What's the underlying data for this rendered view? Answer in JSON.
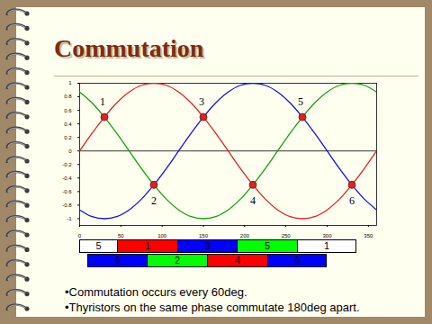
{
  "chart_data": {
    "type": "line",
    "title": "Commutation",
    "x": [
      0,
      15,
      30,
      45,
      60,
      75,
      90,
      105,
      120,
      135,
      150,
      165,
      180,
      195,
      210,
      225,
      240,
      255,
      270,
      285,
      300,
      315,
      330,
      345,
      360
    ],
    "series": [
      {
        "color": "#e02020",
        "values": [
          0,
          0.26,
          0.5,
          0.71,
          0.87,
          0.97,
          1,
          0.97,
          0.87,
          0.71,
          0.5,
          0.26,
          0,
          -0.26,
          -0.5,
          -0.71,
          -0.87,
          -0.97,
          -1,
          -0.97,
          -0.87,
          -0.71,
          -0.5,
          -0.26,
          0
        ]
      },
      {
        "color": "#1010e0",
        "values": [
          -0.87,
          -0.97,
          -1,
          -0.97,
          -0.87,
          -0.71,
          -0.5,
          -0.26,
          0,
          0.26,
          0.5,
          0.71,
          0.87,
          0.97,
          1,
          0.97,
          0.87,
          0.71,
          0.5,
          0.26,
          0,
          -0.26,
          -0.5,
          -0.71,
          -0.87
        ]
      },
      {
        "color": "#10a010",
        "values": [
          0.87,
          0.71,
          0.5,
          0.26,
          0,
          -0.26,
          -0.5,
          -0.71,
          -0.87,
          -0.97,
          -1,
          -0.97,
          -0.87,
          -0.71,
          -0.5,
          -0.26,
          0,
          0.26,
          0.5,
          0.71,
          0.87,
          0.97,
          1,
          0.97,
          0.87
        ]
      }
    ],
    "annotations": [
      {
        "x": 30,
        "y": 0.5,
        "label": "1",
        "color": "#dd2222",
        "marker": "circle"
      },
      {
        "x": 90,
        "y": -0.5,
        "label": "2",
        "color": "#dd2222",
        "marker": "circle"
      },
      {
        "x": 150,
        "y": 0.5,
        "label": "3",
        "color": "#dd2222",
        "marker": "circle"
      },
      {
        "x": 210,
        "y": -0.5,
        "label": "4",
        "color": "#dd2222",
        "marker": "circle"
      },
      {
        "x": 270,
        "y": 0.5,
        "label": "5",
        "color": "#dd2222",
        "marker": "circle"
      },
      {
        "x": 330,
        "y": -0.5,
        "label": "6",
        "color": "#dd2222",
        "marker": "circle"
      }
    ],
    "xlim": [
      0,
      360
    ],
    "xticks": [
      0,
      50,
      100,
      150,
      200,
      250,
      300,
      350
    ],
    "ylim": [
      -1.1,
      1
    ],
    "yticks": [
      -1,
      -0.8,
      -0.6,
      -0.4,
      -0.2,
      0,
      0.2,
      0.4,
      0.6,
      0.8,
      1
    ],
    "grid": false
  },
  "conduction_diagram": {
    "rows": [
      [
        {
          "label": "5",
          "color": "#ffffff"
        },
        {
          "label": "1",
          "color": "#ff0000"
        },
        {
          "label": "3",
          "color": "#0000ff"
        },
        {
          "label": "5",
          "color": "#00ff00"
        },
        {
          "label": "1",
          "color": "#ffffff"
        }
      ],
      [
        {
          "label": "6",
          "color": "#0000ff"
        },
        {
          "label": "2",
          "color": "#00ff00"
        },
        {
          "label": "4",
          "color": "#ff0000"
        },
        {
          "label": "6",
          "color": "#0000ff"
        }
      ]
    ]
  },
  "bullets": [
    "•Commutation occurs every 60deg.",
    "•Thyristors on the same phase commutate 180deg apart."
  ]
}
